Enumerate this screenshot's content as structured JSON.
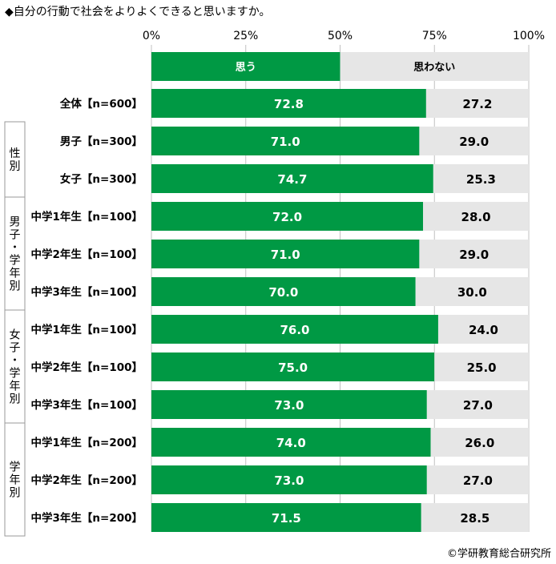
{
  "title": "◆自分の行動で社会をよりよくできると思いますか。",
  "copyright": "©学研教育総合研究所",
  "colors": {
    "yes": "#009944",
    "no": "#e6e6e6",
    "grid": "#c0c0c0",
    "bracket": "#9a9a9a"
  },
  "chart_data": {
    "type": "bar",
    "stacked": true,
    "orientation": "horizontal",
    "xlim": [
      0,
      100
    ],
    "x_ticks": [
      "0%",
      "25%",
      "50%",
      "75%",
      "100%"
    ],
    "legend": [
      "思う",
      "思わない"
    ],
    "categories": [
      "全体【n=600】",
      "男子【n=300】",
      "女子【n=300】",
      "中学1年生【n=100】",
      "中学2年生【n=100】",
      "中学3年生【n=100】",
      "中学1年生【n=100】",
      "中学2年生【n=100】",
      "中学3年生【n=100】",
      "中学1年生【n=200】",
      "中学2年生【n=200】",
      "中学3年生【n=200】"
    ],
    "series": [
      {
        "name": "思う",
        "values": [
          72.8,
          71.0,
          74.7,
          72.0,
          71.0,
          70.0,
          76.0,
          75.0,
          73.0,
          74.0,
          73.0,
          71.5
        ],
        "labels": [
          "72.8",
          "71.0",
          "74.7",
          "72.0",
          "71.0",
          "70.0",
          "76.0",
          "75.0",
          "73.0",
          "74.0",
          "73.0",
          "71.5"
        ]
      },
      {
        "name": "思わない",
        "values": [
          27.2,
          29.0,
          25.3,
          28.0,
          29.0,
          30.0,
          24.0,
          25.0,
          27.0,
          26.0,
          27.0,
          28.5
        ],
        "labels": [
          "27.2",
          "29.0",
          "25.3",
          "28.0",
          "29.0",
          "30.0",
          "24.0",
          "25.0",
          "27.0",
          "26.0",
          "27.0",
          "28.5"
        ]
      }
    ],
    "groups": [
      {
        "label": "性別",
        "rows": [
          1,
          2
        ]
      },
      {
        "label": "男子・学年別",
        "rows": [
          3,
          4,
          5
        ]
      },
      {
        "label": "女子・学年別",
        "rows": [
          6,
          7,
          8
        ]
      },
      {
        "label": "学年別",
        "rows": [
          9,
          10,
          11
        ]
      }
    ]
  }
}
